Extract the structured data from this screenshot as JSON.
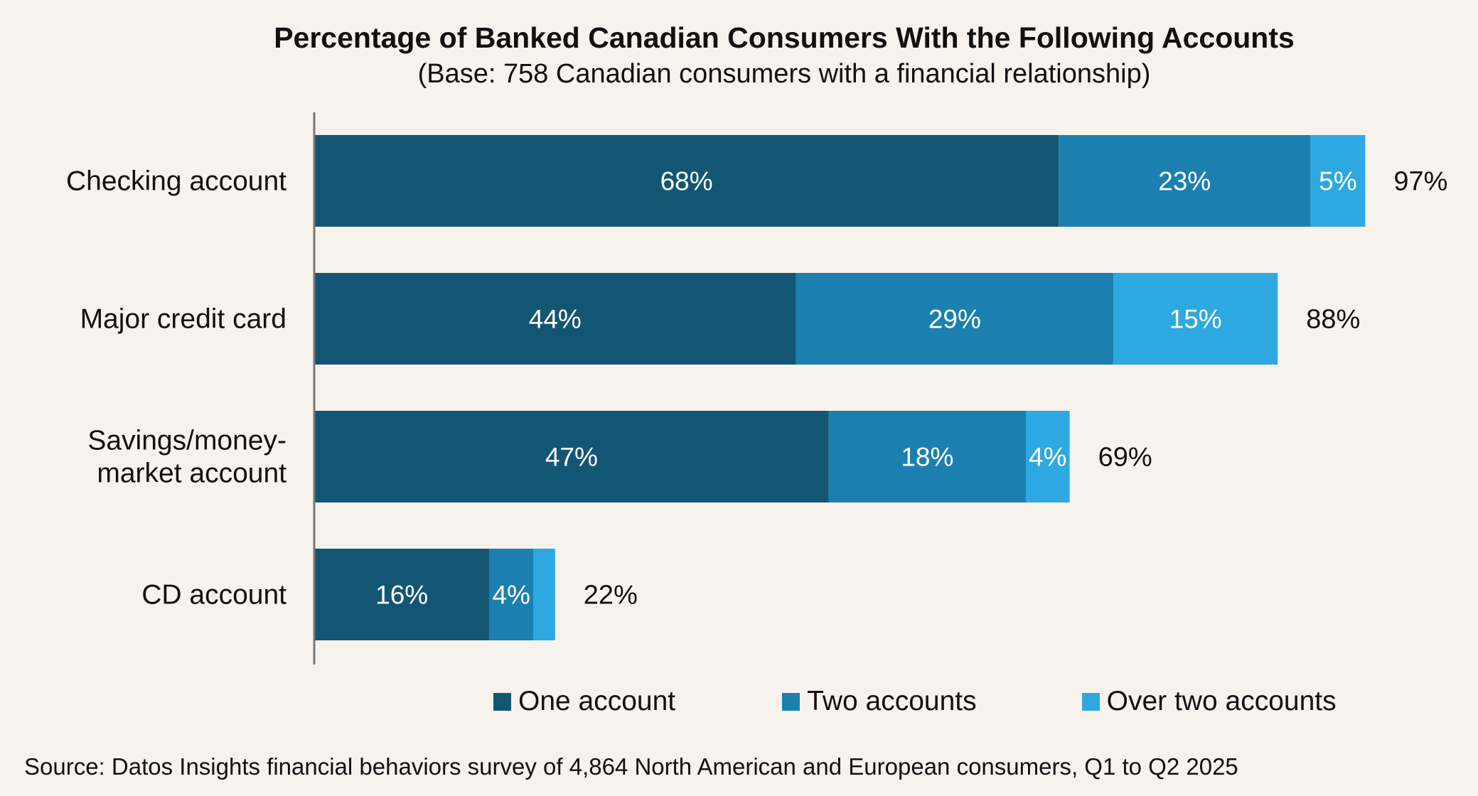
{
  "chart_data": {
    "type": "bar",
    "orientation": "horizontal",
    "stacked": true,
    "title": "Percentage of Banked Canadian Consumers With the Following Accounts",
    "subtitle": "(Base: 758 Canadian consumers with a financial relationship)",
    "categories": [
      "Checking account",
      "Major credit card",
      "Savings/money-market account",
      "CD account"
    ],
    "category_lines": [
      [
        "Checking account"
      ],
      [
        "Major credit card"
      ],
      [
        "Savings/money-",
        "market account"
      ],
      [
        "CD account"
      ]
    ],
    "series": [
      {
        "name": "One account",
        "color": "#135673",
        "values": [
          68,
          44,
          47,
          16
        ]
      },
      {
        "name": "Two accounts",
        "color": "#1b80b0",
        "values": [
          23,
          29,
          18,
          4
        ]
      },
      {
        "name": "Over two accounts",
        "color": "#2ea8e0",
        "values": [
          5,
          15,
          4,
          2
        ]
      }
    ],
    "segment_labels": [
      [
        "68%",
        "23%",
        "5%"
      ],
      [
        "44%",
        "29%",
        "15%"
      ],
      [
        "47%",
        "18%",
        "4%"
      ],
      [
        "16%",
        "4%",
        ""
      ]
    ],
    "totals": [
      "97%",
      "88%",
      "69%",
      "22%"
    ],
    "xlim": [
      0,
      100
    ],
    "grid": false,
    "legend_position": "bottom",
    "source": "Source: Datos Insights financial behaviors survey of 4,864 North American and European consumers, Q1 to Q2 2025"
  }
}
